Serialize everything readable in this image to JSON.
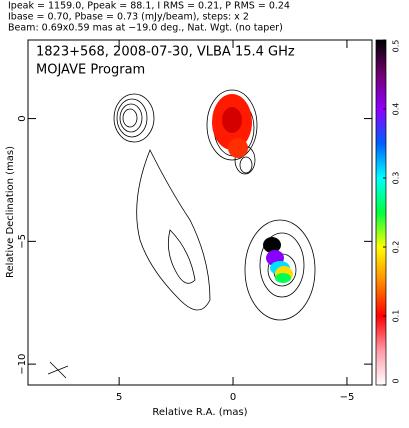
{
  "header": [
    "Ipeak = 1159.0, Ppeak = 88.1, I RMS = 0.21, P RMS = 0.24",
    "Ibase = 0.70, Pbase = 0.73 (mJy/beam), steps: x 2",
    "Beam: 0.69x0.59 mas at −19.0 deg., Nat. Wgt. (no taper)"
  ],
  "chart_data": {
    "type": "contour",
    "title": "1823+568, 2008-07-30, VLBA 15.4 GHz",
    "subtitle": "MOJAVE Program",
    "xlabel": "Relative R.A. (mas)",
    "ylabel": "Relative Declination (mas)",
    "xlim": [
      9,
      -6.1
    ],
    "xticks": [
      5,
      0,
      {
        "value": -5,
        "label": "−5"
      }
    ],
    "ylim": [
      -10.85,
      3.2
    ],
    "yticks": [
      0,
      {
        "value": -5,
        "label": "−5"
      },
      {
        "value": -10,
        "label": "−10"
      }
    ],
    "colorbar": {
      "lim": [
        0,
        0.5
      ],
      "ticks": [
        0,
        0.1,
        0.2,
        0.3,
        0.4,
        0.5
      ]
    }
  }
}
